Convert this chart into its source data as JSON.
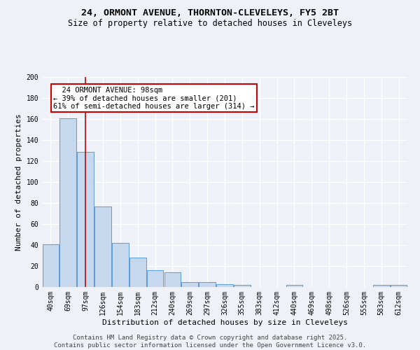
{
  "title": "24, ORMONT AVENUE, THORNTON-CLEVELEYS, FY5 2BT",
  "subtitle": "Size of property relative to detached houses in Cleveleys",
  "xlabel": "Distribution of detached houses by size in Cleveleys",
  "ylabel": "Number of detached properties",
  "footer1": "Contains HM Land Registry data © Crown copyright and database right 2025.",
  "footer2": "Contains public sector information licensed under the Open Government Licence v3.0.",
  "categories": [
    "40sqm",
    "69sqm",
    "97sqm",
    "126sqm",
    "154sqm",
    "183sqm",
    "212sqm",
    "240sqm",
    "269sqm",
    "297sqm",
    "326sqm",
    "355sqm",
    "383sqm",
    "412sqm",
    "440sqm",
    "469sqm",
    "498sqm",
    "526sqm",
    "555sqm",
    "583sqm",
    "612sqm"
  ],
  "values": [
    41,
    161,
    129,
    77,
    42,
    28,
    16,
    14,
    5,
    5,
    3,
    2,
    0,
    0,
    2,
    0,
    0,
    0,
    0,
    2,
    2
  ],
  "bar_color": "#c5d8ed",
  "bar_edge_color": "#5b9bd5",
  "property_label": "24 ORMONT AVENUE: 98sqm",
  "smaller_pct": 39,
  "smaller_n": 201,
  "larger_pct": 61,
  "larger_n": 314,
  "vline_x_index": 2,
  "vline_color": "#cc0000",
  "annotation_box_color": "#cc0000",
  "background_color": "#eef2f8",
  "ylim": [
    0,
    200
  ],
  "yticks": [
    0,
    20,
    40,
    60,
    80,
    100,
    120,
    140,
    160,
    180,
    200
  ],
  "title_fontsize": 9.5,
  "subtitle_fontsize": 8.5,
  "axis_label_fontsize": 8,
  "tick_fontsize": 7,
  "annotation_fontsize": 7.5,
  "footer_fontsize": 6.5
}
